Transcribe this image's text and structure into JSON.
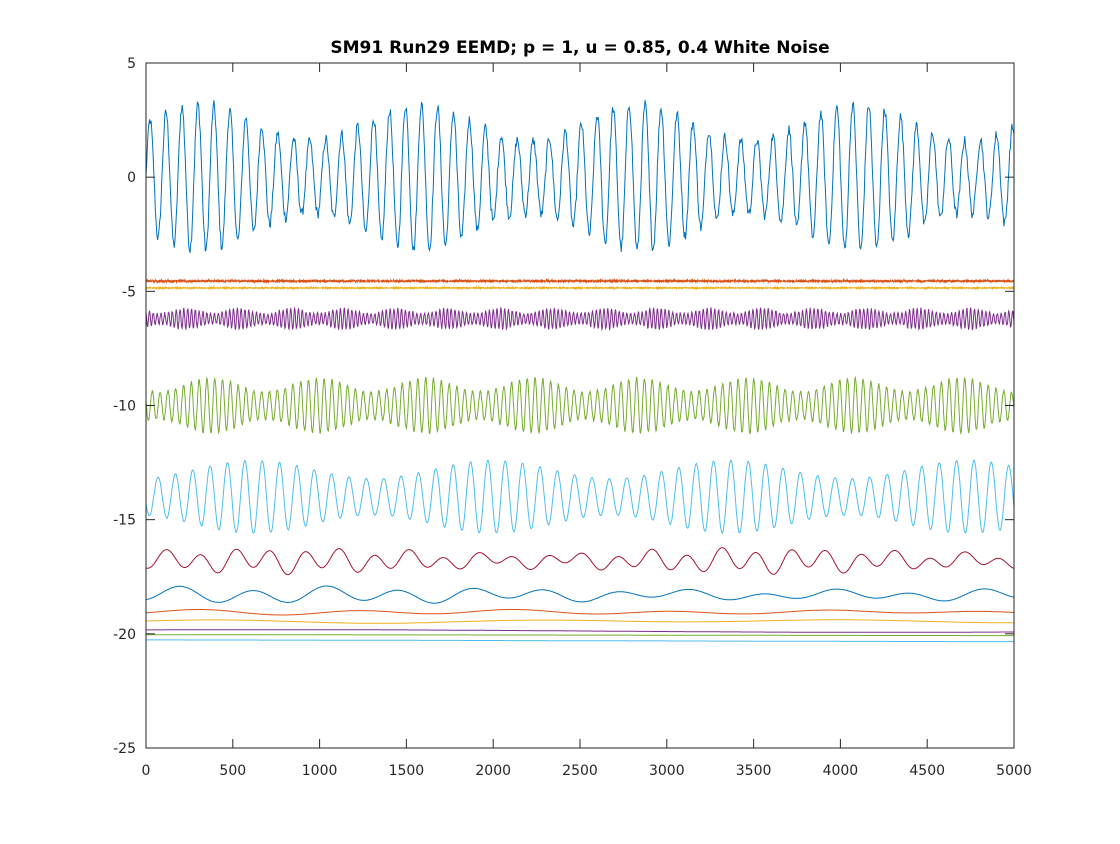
{
  "chart_data": {
    "type": "line",
    "title": "SM91 Run29 EEMD; p = 1, u = 0.85, 0.4 White Noise",
    "xlabel": "",
    "ylabel": "",
    "xlim": [
      0,
      5000
    ],
    "ylim": [
      -25,
      5
    ],
    "grid": false,
    "legend": "none",
    "xticks": [
      0,
      500,
      1000,
      1500,
      2000,
      2500,
      3000,
      3500,
      4000,
      4500,
      5000
    ],
    "xtick_labels": [
      "0",
      "500",
      "1000",
      "1500",
      "2000",
      "2500",
      "3000",
      "3500",
      "4000",
      "4500",
      "5000"
    ],
    "yticks": [
      5,
      0,
      -5,
      -10,
      -15,
      -20,
      -25
    ],
    "ytick_labels": [
      "5",
      "0",
      "-5",
      "-10",
      "-15",
      "-20",
      "-25"
    ],
    "series": [
      {
        "color": "#0072BD",
        "offset": 0.0,
        "amplitude": 3.2,
        "period": 92,
        "noise": 0.45,
        "spikes": true
      },
      {
        "color": "#D95319",
        "offset": -4.55,
        "amplitude": 0.05,
        "period": 5,
        "noise": 0.06
      },
      {
        "color": "#EDB120",
        "offset": -4.85,
        "amplitude": 0.03,
        "period": 7,
        "noise": 0.03
      },
      {
        "color": "#7E2F8E",
        "offset": -6.2,
        "amplitude": 0.45,
        "period": 22,
        "noise": 0.1
      },
      {
        "color": "#77AC30",
        "offset": -10.0,
        "amplitude": 1.2,
        "period": 45,
        "noise": 0.12
      },
      {
        "color": "#4DBEEE",
        "offset": -14.0,
        "amplitude": 1.6,
        "period": 100,
        "noise": 0.03
      },
      {
        "color": "#A2142F",
        "offset": -16.8,
        "amplitude": 0.45,
        "period": 200,
        "noise": 0.0
      },
      {
        "color": "#0072BD",
        "offset": -18.3,
        "amplitude": 0.3,
        "period": 420,
        "noise": 0.0
      },
      {
        "color": "#D95319",
        "offset": -19.05,
        "amplitude": 0.1,
        "period": 900,
        "noise": 0.0
      },
      {
        "color": "#EDB120",
        "offset": -19.45,
        "amplitude": 0.08,
        "period": 1800,
        "noise": 0.0
      },
      {
        "color": "#7E2F8E",
        "offset": -19.85,
        "amplitude": 0.1,
        "period": 7000,
        "noise": 0.0
      },
      {
        "color": "#77AC30",
        "offset": -20.05,
        "amplitude": 0.05,
        "period": 12000,
        "noise": 0.0
      },
      {
        "color": "#4DBEEE",
        "offset": -20.3,
        "amplitude": 0.1,
        "period": 16000,
        "noise": 0.0
      }
    ]
  }
}
